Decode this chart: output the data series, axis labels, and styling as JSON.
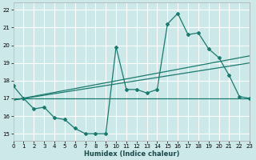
{
  "xlabel": "Humidex (Indice chaleur)",
  "bg_color": "#cce8e8",
  "grid_color": "#ffffff",
  "line_color": "#1a7a6e",
  "xlim": [
    0,
    23
  ],
  "ylim": [
    14.6,
    22.4
  ],
  "xticks": [
    0,
    1,
    2,
    3,
    4,
    5,
    6,
    7,
    8,
    9,
    10,
    11,
    12,
    13,
    14,
    15,
    16,
    17,
    18,
    19,
    20,
    21,
    22,
    23
  ],
  "yticks": [
    15,
    16,
    17,
    18,
    19,
    20,
    21,
    22
  ],
  "series_left": {
    "x": [
      0,
      1,
      2,
      3,
      4,
      5,
      6,
      7,
      8,
      9
    ],
    "y": [
      17.7,
      17.0,
      16.4,
      16.5,
      15.9,
      15.8,
      15.3,
      15.0,
      15.0,
      15.0
    ]
  },
  "series_right": {
    "x": [
      10,
      11,
      12,
      13,
      14,
      15,
      16,
      17,
      18,
      19,
      20,
      21,
      22,
      23
    ],
    "y": [
      19.9,
      17.5,
      17.5,
      17.3,
      17.5,
      21.2,
      21.8,
      20.6,
      20.7,
      19.8,
      19.3,
      18.3,
      17.1,
      17.0
    ]
  },
  "trend1": {
    "x": [
      0,
      23
    ],
    "y": [
      17.0,
      17.0
    ]
  },
  "trend2": {
    "x": [
      0,
      23
    ],
    "y": [
      16.9,
      19.4
    ]
  },
  "trend3": {
    "x": [
      0,
      23
    ],
    "y": [
      16.9,
      19.0
    ]
  }
}
